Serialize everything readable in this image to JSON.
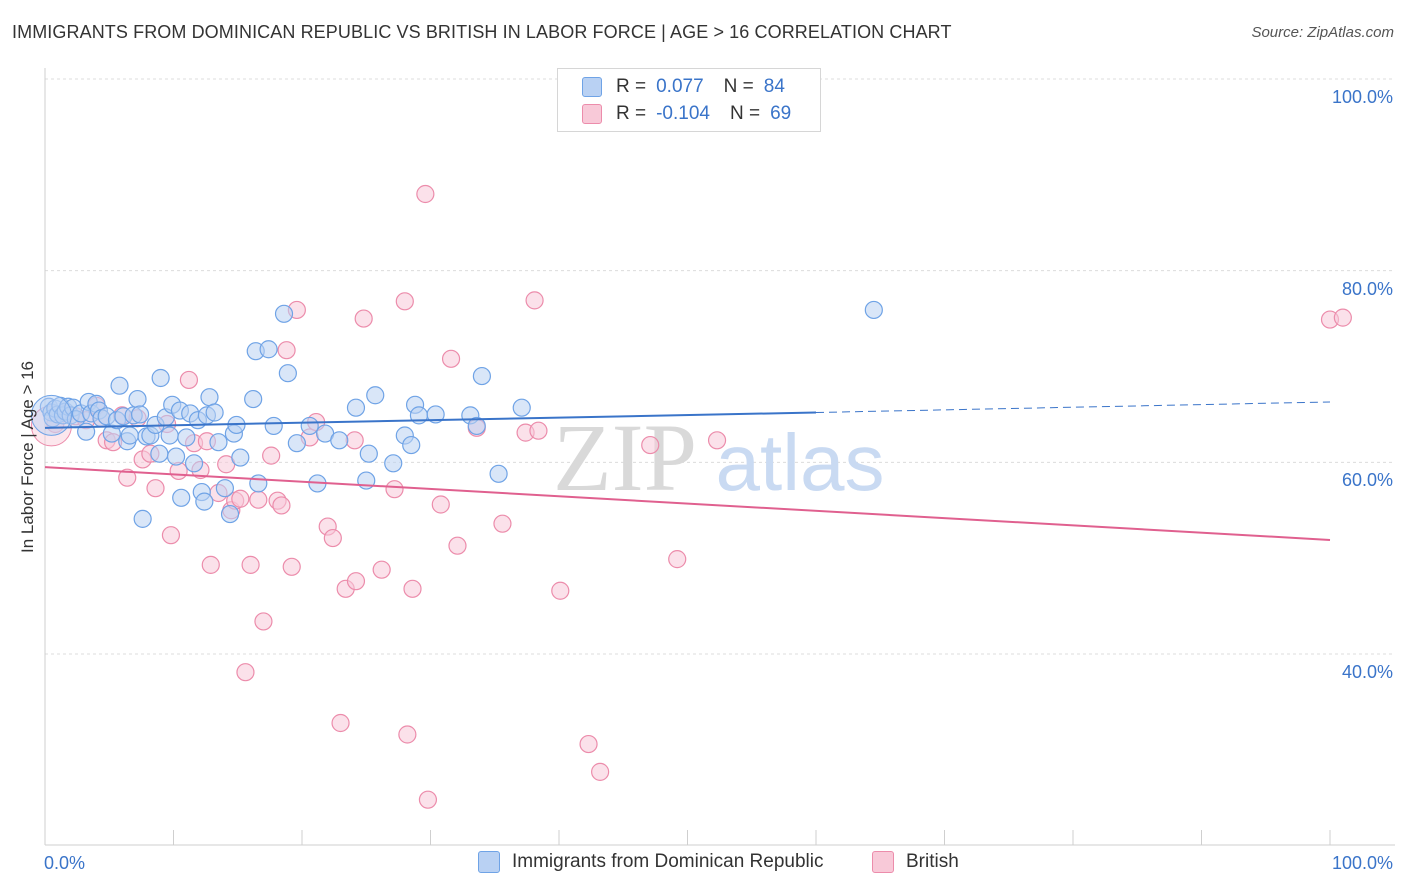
{
  "title": "IMMIGRANTS FROM DOMINICAN REPUBLIC VS BRITISH IN LABOR FORCE | AGE > 16 CORRELATION CHART",
  "source": "Source: ZipAtlas.com",
  "watermark": {
    "zip": "ZIP",
    "atlas": "atlas"
  },
  "colors": {
    "blue": "#6fa3e6",
    "blue_fill": "#b9d1f3",
    "blue_line": "#3a74c9",
    "pink": "#ec8cab",
    "pink_fill": "#f8c9d8",
    "pink_line": "#e0608f",
    "grid": "#dcdcdc",
    "axis_text": "#3a74c9"
  },
  "legend": {
    "rows": [
      {
        "r_label": "R =",
        "r_value": "0.077",
        "n_label": "N =",
        "n_value": "84"
      },
      {
        "r_label": "R =",
        "r_value": "-0.104",
        "n_label": "N =",
        "n_value": "69"
      }
    ]
  },
  "bottom_legend": [
    "Immigrants from Dominican Republic",
    "British"
  ],
  "chart_data": {
    "type": "scatter",
    "xlabel": "",
    "ylabel": "In Labor Force | Age > 16",
    "xlim": [
      0,
      100
    ],
    "ylim": [
      20,
      101
    ],
    "x_tick_labels": [
      "0.0%",
      "100.0%"
    ],
    "y_ticks": [
      40,
      60,
      80,
      100
    ],
    "y_tick_labels": [
      "40.0%",
      "60.0%",
      "80.0%",
      "100.0%"
    ],
    "grid": true,
    "legend_position": "top-center",
    "series": [
      {
        "name": "Immigrants from Dominican Republic",
        "r": 0.077,
        "n": 84,
        "trend": {
          "x0": 0,
          "y0": 63.6,
          "x1": 60,
          "y1": 65.2,
          "dashed_to_x": 100,
          "dashed_to_y": 66.3
        },
        "points": [
          [
            0.3,
            65.8
          ],
          [
            0.5,
            65.2
          ],
          [
            0.6,
            64.6
          ],
          [
            0.8,
            65.6
          ],
          [
            1.0,
            65.0
          ],
          [
            1.2,
            65.9
          ],
          [
            1.4,
            64.9
          ],
          [
            1.6,
            65.3
          ],
          [
            1.8,
            65.8
          ],
          [
            2.0,
            64.9
          ],
          [
            2.2,
            65.7
          ],
          [
            2.4,
            64.5
          ],
          [
            2.8,
            65.1
          ],
          [
            3.2,
            63.2
          ],
          [
            3.4,
            66.3
          ],
          [
            3.6,
            65.1
          ],
          [
            4.0,
            66.1
          ],
          [
            4.2,
            65.4
          ],
          [
            4.4,
            64.6
          ],
          [
            4.8,
            64.8
          ],
          [
            5.2,
            63.0
          ],
          [
            5.6,
            64.4
          ],
          [
            5.8,
            68.0
          ],
          [
            6.1,
            64.8
          ],
          [
            6.4,
            62.2
          ],
          [
            6.6,
            62.8
          ],
          [
            6.9,
            64.9
          ],
          [
            7.2,
            66.6
          ],
          [
            7.4,
            65.0
          ],
          [
            7.6,
            54.1
          ],
          [
            7.9,
            62.7
          ],
          [
            8.2,
            62.8
          ],
          [
            8.6,
            63.9
          ],
          [
            8.9,
            60.9
          ],
          [
            9.0,
            68.8
          ],
          [
            9.4,
            64.7
          ],
          [
            9.7,
            62.8
          ],
          [
            9.9,
            66.0
          ],
          [
            10.2,
            60.6
          ],
          [
            10.5,
            65.4
          ],
          [
            10.6,
            56.3
          ],
          [
            11.0,
            62.6
          ],
          [
            11.3,
            65.1
          ],
          [
            11.6,
            59.9
          ],
          [
            11.9,
            64.4
          ],
          [
            12.2,
            56.9
          ],
          [
            12.4,
            55.9
          ],
          [
            12.6,
            64.9
          ],
          [
            12.8,
            66.8
          ],
          [
            13.2,
            65.2
          ],
          [
            13.5,
            62.1
          ],
          [
            14.0,
            57.3
          ],
          [
            14.4,
            54.6
          ],
          [
            14.7,
            63.0
          ],
          [
            14.9,
            63.9
          ],
          [
            15.2,
            60.5
          ],
          [
            16.2,
            66.6
          ],
          [
            16.4,
            71.6
          ],
          [
            16.6,
            57.8
          ],
          [
            17.4,
            71.8
          ],
          [
            17.8,
            63.8
          ],
          [
            18.6,
            75.5
          ],
          [
            18.9,
            69.3
          ],
          [
            19.6,
            62.0
          ],
          [
            20.6,
            63.8
          ],
          [
            21.2,
            57.8
          ],
          [
            21.8,
            63.0
          ],
          [
            22.9,
            62.3
          ],
          [
            24.2,
            65.7
          ],
          [
            25.0,
            58.1
          ],
          [
            25.2,
            60.9
          ],
          [
            25.7,
            67.0
          ],
          [
            27.1,
            59.9
          ],
          [
            28.0,
            62.8
          ],
          [
            28.5,
            61.8
          ],
          [
            28.8,
            66.0
          ],
          [
            29.1,
            64.9
          ],
          [
            30.4,
            65.0
          ],
          [
            33.1,
            64.9
          ],
          [
            33.6,
            63.8
          ],
          [
            34.0,
            69.0
          ],
          [
            35.3,
            58.8
          ],
          [
            37.1,
            65.7
          ],
          [
            64.5,
            75.9
          ]
        ]
      },
      {
        "name": "British",
        "r": -0.104,
        "n": 69,
        "trend": {
          "x0": 0,
          "y0": 59.5,
          "x1": 100,
          "y1": 51.9
        },
        "points": [
          [
            0.8,
            64.0
          ],
          [
            1.6,
            65.1
          ],
          [
            2.4,
            64.8
          ],
          [
            3.2,
            64.4
          ],
          [
            4.0,
            65.9
          ],
          [
            4.4,
            64.6
          ],
          [
            4.8,
            62.3
          ],
          [
            5.3,
            62.1
          ],
          [
            6.0,
            64.9
          ],
          [
            6.4,
            58.4
          ],
          [
            7.2,
            64.6
          ],
          [
            7.6,
            60.3
          ],
          [
            8.2,
            60.9
          ],
          [
            8.6,
            57.3
          ],
          [
            9.5,
            64.0
          ],
          [
            9.8,
            52.4
          ],
          [
            10.4,
            59.1
          ],
          [
            11.2,
            68.6
          ],
          [
            11.6,
            62.0
          ],
          [
            12.1,
            59.2
          ],
          [
            12.6,
            62.2
          ],
          [
            12.9,
            49.3
          ],
          [
            13.5,
            56.8
          ],
          [
            14.1,
            59.8
          ],
          [
            14.5,
            55.0
          ],
          [
            14.8,
            56.0
          ],
          [
            15.2,
            56.2
          ],
          [
            15.6,
            38.1
          ],
          [
            16.0,
            49.3
          ],
          [
            16.6,
            56.1
          ],
          [
            17.0,
            43.4
          ],
          [
            17.6,
            60.7
          ],
          [
            18.1,
            56.0
          ],
          [
            18.4,
            55.5
          ],
          [
            18.8,
            71.7
          ],
          [
            19.2,
            49.1
          ],
          [
            19.6,
            75.9
          ],
          [
            20.6,
            62.6
          ],
          [
            21.1,
            64.2
          ],
          [
            22.0,
            53.3
          ],
          [
            22.4,
            52.1
          ],
          [
            23.0,
            32.8
          ],
          [
            23.4,
            46.8
          ],
          [
            24.1,
            62.3
          ],
          [
            24.2,
            47.6
          ],
          [
            24.8,
            75.0
          ],
          [
            26.2,
            48.8
          ],
          [
            27.2,
            57.2
          ],
          [
            28.0,
            76.8
          ],
          [
            28.2,
            31.6
          ],
          [
            28.6,
            46.8
          ],
          [
            29.6,
            88.0
          ],
          [
            29.8,
            24.8
          ],
          [
            30.8,
            55.6
          ],
          [
            31.6,
            70.8
          ],
          [
            32.1,
            51.3
          ],
          [
            33.6,
            63.6
          ],
          [
            35.6,
            53.6
          ],
          [
            37.4,
            63.1
          ],
          [
            38.1,
            76.9
          ],
          [
            38.4,
            63.3
          ],
          [
            40.1,
            46.6
          ],
          [
            42.3,
            30.6
          ],
          [
            43.2,
            27.7
          ],
          [
            47.1,
            61.8
          ],
          [
            49.2,
            49.9
          ],
          [
            52.3,
            62.3
          ],
          [
            100.0,
            74.9
          ],
          [
            101.0,
            75.1
          ]
        ]
      }
    ]
  },
  "big_points": [
    {
      "series": 0,
      "x": 0.5,
      "y": 64.9
    },
    {
      "series": 1,
      "x": 0.5,
      "y": 63.8
    }
  ]
}
